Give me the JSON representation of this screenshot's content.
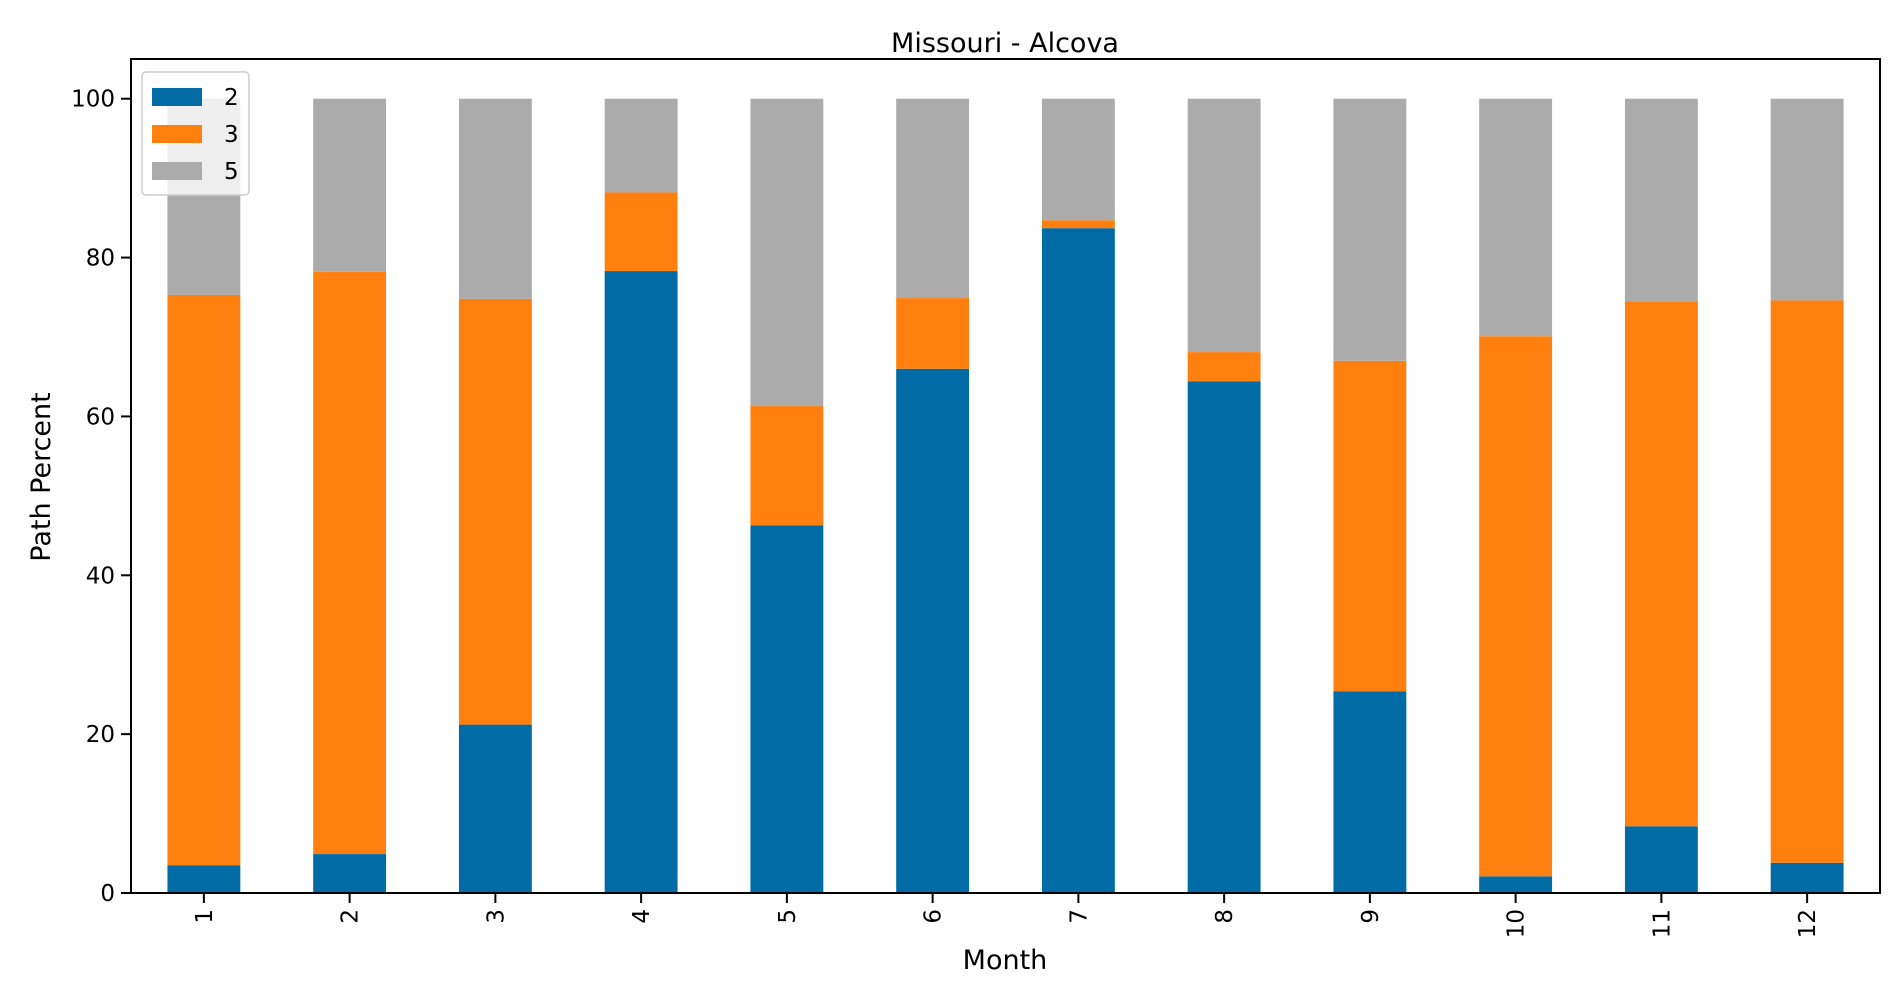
{
  "chart_data": {
    "type": "bar",
    "stacked": true,
    "title": "Missouri - Alcova",
    "xlabel": "Month",
    "ylabel": "Path Percent",
    "ylim": [
      0,
      105
    ],
    "yticks": [
      0,
      20,
      40,
      60,
      80,
      100
    ],
    "categories": [
      "1",
      "2",
      "3",
      "4",
      "5",
      "6",
      "7",
      "8",
      "9",
      "10",
      "11",
      "12"
    ],
    "series": [
      {
        "name": "2",
        "color": "#006BA4",
        "values": [
          3.5,
          4.9,
          21.2,
          78.3,
          46.3,
          66.0,
          83.7,
          64.4,
          25.4,
          2.1,
          8.4,
          3.8
        ]
      },
      {
        "name": "3",
        "color": "#FF800E",
        "values": [
          71.8,
          73.3,
          53.6,
          9.9,
          15.0,
          8.9,
          1.0,
          3.7,
          41.6,
          68.0,
          66.1,
          70.8
        ]
      },
      {
        "name": "5",
        "color": "#ABABAB",
        "values": [
          24.7,
          21.8,
          25.2,
          11.8,
          38.7,
          25.1,
          15.3,
          31.9,
          33.0,
          29.9,
          25.5,
          25.4
        ]
      }
    ],
    "legend_position": "top-left",
    "grid": false
  }
}
